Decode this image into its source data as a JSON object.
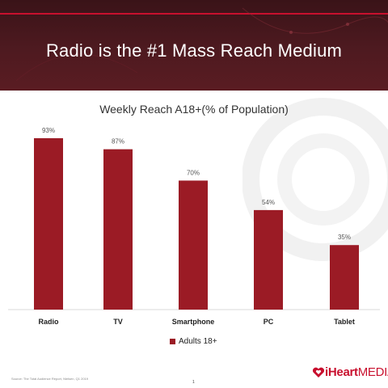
{
  "slide": {
    "title": "Radio is the #1 Mass Reach Medium",
    "source": "Source: The Total Audience Report, Nielsen, Q1 2019",
    "page_number": "1",
    "logo_text_bold": "iHeart",
    "logo_text_rest": "MEDIA"
  },
  "colors": {
    "bar": "#9b1b25",
    "banner": "#4e1a20",
    "accent": "#c8102e"
  },
  "chart_data": {
    "type": "bar",
    "title": "Weekly Reach A18+(% of Population)",
    "categories": [
      "Radio",
      "TV",
      "Smartphone",
      "PC",
      "Tablet"
    ],
    "series": [
      {
        "name": "Adults 18+",
        "values": [
          93,
          87,
          70,
          54,
          35
        ]
      }
    ],
    "data_labels": [
      "93%",
      "87%",
      "70%",
      "54%",
      "35%"
    ],
    "ylim": [
      0,
      100
    ],
    "grid": false,
    "legend": "bottom"
  }
}
